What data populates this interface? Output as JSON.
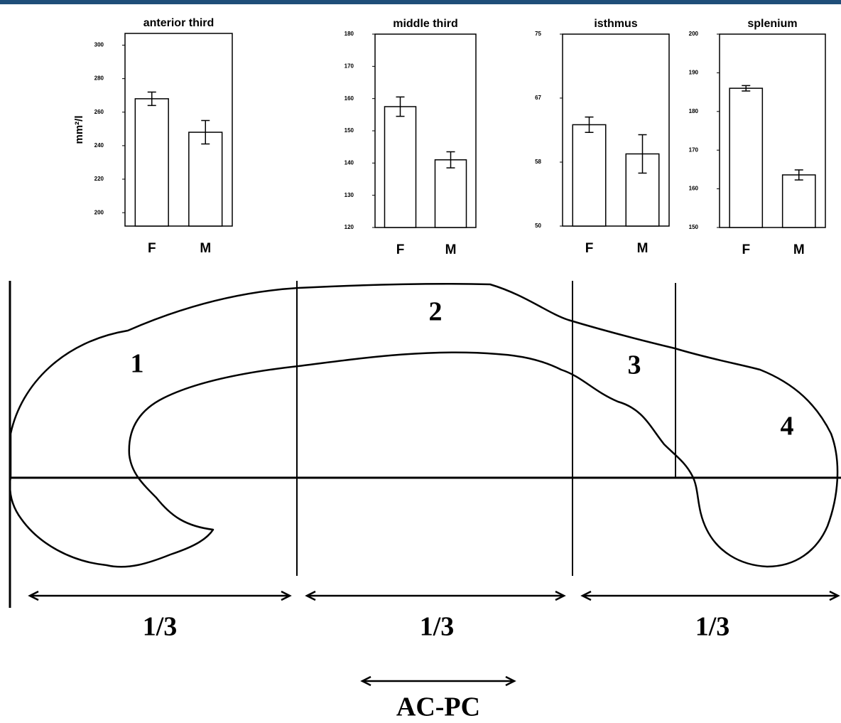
{
  "chart_data": [
    {
      "type": "bar",
      "title": "anterior third",
      "y_label": "mm²/l",
      "categories": [
        "F",
        "M"
      ],
      "values": [
        268,
        248
      ],
      "errors": [
        4,
        7
      ],
      "ylim": [
        192,
        307
      ],
      "yticks": [
        200,
        220,
        240,
        260,
        280,
        300
      ]
    },
    {
      "type": "bar",
      "title": "middle third",
      "categories": [
        "F",
        "M"
      ],
      "values": [
        157.5,
        141
      ],
      "errors": [
        3,
        2.5
      ],
      "ylim": [
        120,
        180
      ],
      "yticks": [
        120,
        130,
        140,
        150,
        160,
        170,
        180
      ]
    },
    {
      "type": "bar",
      "title": "isthmus",
      "categories": [
        "F",
        "M"
      ],
      "values": [
        63.2,
        59.4
      ],
      "errors": [
        1,
        2.5
      ],
      "ylim": [
        50,
        75
      ],
      "yticks": [
        50,
        {
          "value": 58.33,
          "label": "58"
        },
        {
          "value": 66.67,
          "label": "67"
        },
        75
      ]
    },
    {
      "type": "bar",
      "title": "splenium",
      "categories": [
        "F",
        "M"
      ],
      "values": [
        186,
        163.6
      ],
      "errors": [
        0.7,
        1.3
      ],
      "ylim": [
        150,
        200
      ],
      "yticks": [
        150,
        160,
        170,
        180,
        190,
        200
      ]
    }
  ],
  "diagram": {
    "regions": [
      "1",
      "2",
      "3",
      "4"
    ],
    "segments": [
      "1/3",
      "1/3",
      "1/3"
    ],
    "reference": "AC-PC"
  }
}
